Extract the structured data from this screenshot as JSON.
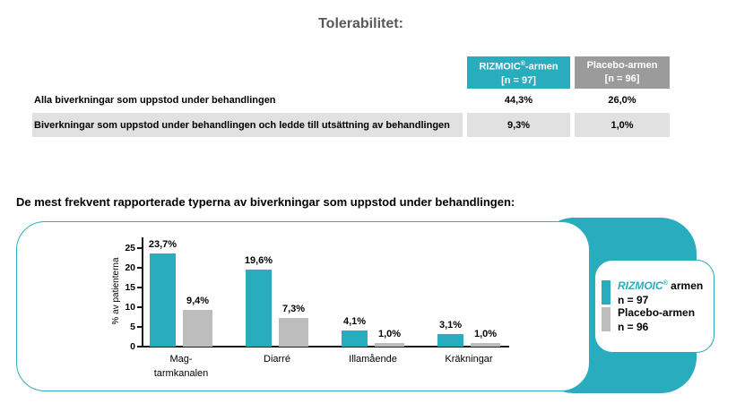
{
  "title": "Tolerabilitet:",
  "table": {
    "col_headers": [
      {
        "brand": "RIZMOIC",
        "reg": "®",
        "rest": "-armen",
        "n": "[n = 97]"
      },
      {
        "name": "Placebo-armen",
        "n": "[n = 96]"
      }
    ],
    "rows": [
      {
        "label": "Alla biverkningar som uppstod under behandlingen",
        "rizmoic": "44,3%",
        "placebo": "26,0%"
      },
      {
        "label": "Biverkningar som uppstod under behandlingen och ledde till utsättning av behandlingen",
        "rizmoic": "9,3%",
        "placebo": "1,0%"
      }
    ]
  },
  "section_heading": "De mest frekvent rapporterade typerna av biverkningar som uppstod under behandlingen:",
  "chart_data": {
    "type": "bar",
    "categories": [
      "Mag-tarmkanalen",
      "Diarré",
      "Illamående",
      "Kräkningar"
    ],
    "categories_display": [
      "Mag-\ntarmkanalen",
      "Diarré",
      "Illamående",
      "Kräkningar"
    ],
    "series": [
      {
        "name": "RIZMOIC® armen (n = 97)",
        "values": [
          23.7,
          19.6,
          4.1,
          3.1
        ],
        "labels": [
          "23,7%",
          "19,6%",
          "4,1%",
          "3,1%"
        ],
        "color": "#29ACBE"
      },
      {
        "name": "Placebo-armen (n = 96)",
        "values": [
          9.4,
          7.3,
          1.0,
          1.0
        ],
        "labels": [
          "9,4%",
          "7,3%",
          "1,0%",
          "1,0%"
        ],
        "color": "#BDBDBD"
      }
    ],
    "ylabel": "% av patienterna",
    "yticks": [
      0,
      5,
      10,
      15,
      20,
      25
    ],
    "ylim": [
      0,
      25
    ],
    "grid": false,
    "legend_position": "right"
  },
  "legend": {
    "brand": "RIZMOIC",
    "brand_reg": "®",
    "brand_suffix": " armen",
    "brand_n": "n = 97",
    "placebo": "Placebo-armen",
    "placebo_n": "n = 96"
  },
  "colors": {
    "teal": "#29ACBE",
    "header_gray": "#9B9B9B",
    "row_gray": "#E1E1E1",
    "bar_gray": "#BDBDBD",
    "title_gray": "#58595B"
  }
}
